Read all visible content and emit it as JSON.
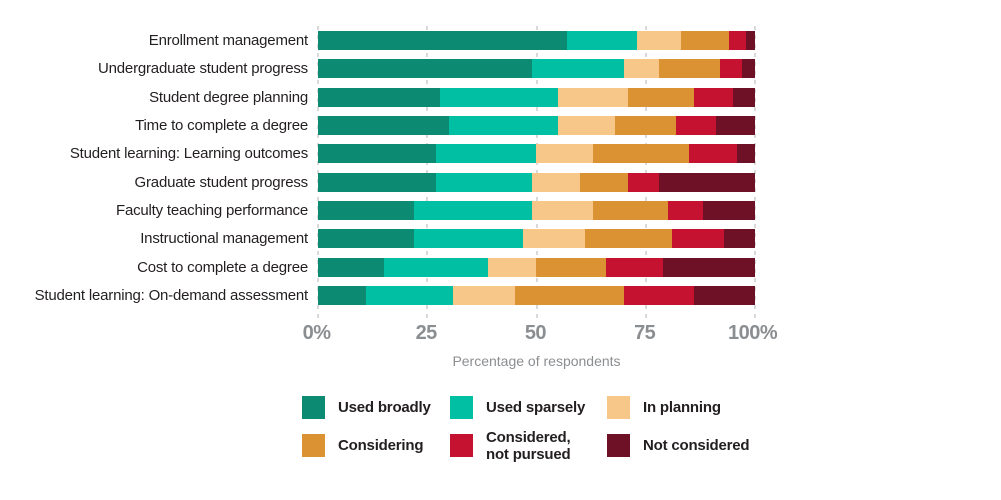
{
  "chart_data": {
    "type": "bar",
    "orientation": "horizontal",
    "stacked": true,
    "title": "",
    "xlabel": "Percentage of respondents",
    "xlim": [
      0,
      100
    ],
    "grid": "dashed-vertical",
    "legend_position": "bottom",
    "x_ticks": [
      {
        "value": 0,
        "label": "0%"
      },
      {
        "value": 25,
        "label": "25"
      },
      {
        "value": 50,
        "label": "50"
      },
      {
        "value": 75,
        "label": "75"
      },
      {
        "value": 100,
        "label": "100%"
      }
    ],
    "categories": [
      "Enrollment management",
      "Undergraduate student progress",
      "Student degree planning",
      "Time to complete a degree",
      "Student learning: Learning outcomes",
      "Graduate student progress",
      "Faculty teaching performance",
      "Instructional management",
      "Cost to complete a degree",
      "Student learning: On-demand assessment"
    ],
    "series": [
      {
        "name": "Used broadly",
        "color": "#0c8a72",
        "values": [
          57,
          49,
          28,
          30,
          27,
          27,
          22,
          22,
          15,
          11
        ]
      },
      {
        "name": "Used sparsely",
        "color": "#00bfa2",
        "values": [
          16,
          21,
          27,
          25,
          23,
          22,
          27,
          25,
          24,
          20
        ]
      },
      {
        "name": "In planning",
        "color": "#f7c78a",
        "values": [
          10,
          8,
          16,
          13,
          13,
          11,
          14,
          14,
          11,
          14
        ]
      },
      {
        "name": "Considering",
        "color": "#db9233",
        "values": [
          11,
          14,
          15,
          14,
          22,
          11,
          17,
          20,
          16,
          25
        ]
      },
      {
        "name": "Considered, not pursued",
        "color": "#c41230",
        "values": [
          4,
          5,
          9,
          9,
          11,
          7,
          8,
          12,
          13,
          16
        ]
      },
      {
        "name": "Not considered",
        "color": "#6e1127",
        "values": [
          2,
          3,
          5,
          9,
          4,
          22,
          12,
          7,
          21,
          14
        ]
      }
    ]
  },
  "colors": {
    "label_text": "#231f20",
    "axis_text": "#8b8e91",
    "gridline": "#d9d9d9",
    "background": "#ffffff"
  }
}
